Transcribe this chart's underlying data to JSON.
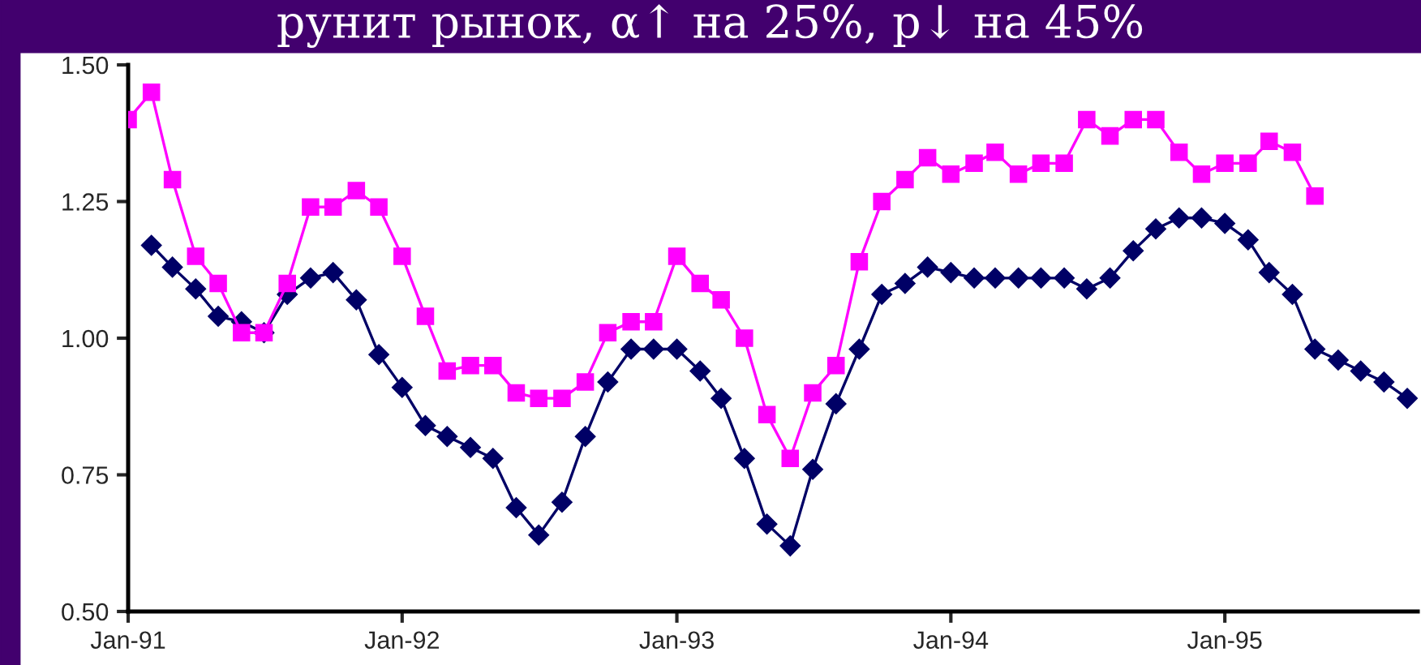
{
  "chart_data": {
    "type": "line",
    "title": "рунит рынок, α↑ на 25%, p↓ на 45%",
    "x": [
      "1991-01",
      "1991-02",
      "1991-03",
      "1991-04",
      "1991-05",
      "1991-06",
      "1991-07",
      "1991-08",
      "1991-09",
      "1991-10",
      "1991-11",
      "1991-12",
      "1992-01",
      "1992-02",
      "1992-03",
      "1992-04",
      "1992-05",
      "1992-06",
      "1992-07",
      "1992-08",
      "1992-09",
      "1992-10",
      "1992-11",
      "1992-12",
      "1993-01",
      "1993-02",
      "1993-03",
      "1993-04",
      "1993-05",
      "1993-06",
      "1993-07",
      "1993-08",
      "1993-09",
      "1993-10",
      "1993-11",
      "1993-12",
      "1994-01",
      "1994-02",
      "1994-03",
      "1994-04",
      "1994-05",
      "1994-06",
      "1994-07",
      "1994-08",
      "1994-09",
      "1994-10",
      "1994-11",
      "1994-12",
      "1995-01",
      "1995-02",
      "1995-03",
      "1995-04",
      "1995-05",
      "1995-06",
      "1995-07",
      "1995-08",
      "1995-09"
    ],
    "series": [
      {
        "color": "#ff00ff",
        "marker": "square",
        "values": [
          1.4,
          1.45,
          1.29,
          1.15,
          1.1,
          1.01,
          1.01,
          1.1,
          1.24,
          1.24,
          1.27,
          1.24,
          1.15,
          1.04,
          0.94,
          0.95,
          0.95,
          0.9,
          0.89,
          0.89,
          0.92,
          1.01,
          1.03,
          1.03,
          1.15,
          1.1,
          1.07,
          1.0,
          0.86,
          0.78,
          0.9,
          0.95,
          1.14,
          1.25,
          1.29,
          1.33,
          1.3,
          1.32,
          1.34,
          1.3,
          1.32,
          1.32,
          1.4,
          1.37,
          1.4,
          1.4,
          1.34,
          1.3,
          1.32,
          1.32,
          1.36,
          1.34,
          1.26,
          null,
          null,
          null,
          null
        ]
      },
      {
        "color": "#000066",
        "marker": "diamond",
        "values": [
          null,
          1.17,
          1.13,
          1.09,
          1.04,
          1.03,
          1.01,
          1.08,
          1.11,
          1.12,
          1.07,
          0.97,
          0.91,
          0.84,
          0.82,
          0.8,
          0.78,
          0.69,
          0.64,
          0.7,
          0.82,
          0.92,
          0.98,
          0.98,
          0.98,
          0.94,
          0.89,
          0.78,
          0.66,
          0.62,
          0.76,
          0.88,
          0.98,
          1.08,
          1.1,
          1.13,
          1.12,
          1.11,
          1.11,
          1.11,
          1.11,
          1.11,
          1.09,
          1.11,
          1.16,
          1.2,
          1.22,
          1.22,
          1.21,
          1.18,
          1.12,
          1.08,
          0.98,
          0.96,
          0.94,
          0.92,
          0.89
        ]
      }
    ],
    "xlim": [
      "1991-01",
      "1995-09-15"
    ],
    "xticks": [
      {
        "value": "1991-01",
        "label": "Jan-91"
      },
      {
        "value": "1992-01",
        "label": "Jan-92"
      },
      {
        "value": "1993-01",
        "label": "Jan-93"
      },
      {
        "value": "1994-01",
        "label": "Jan-94"
      },
      {
        "value": "1995-01",
        "label": "Jan-95"
      }
    ],
    "ylim": [
      0.5,
      1.5
    ],
    "yticks": [
      {
        "value": 0.5,
        "label": "0.50"
      },
      {
        "value": 0.75,
        "label": "0.75"
      },
      {
        "value": 1.0,
        "label": "1.00"
      },
      {
        "value": 1.25,
        "label": "1.25"
      },
      {
        "value": 1.5,
        "label": "1.50"
      }
    ],
    "grid": false,
    "legend": false
  }
}
